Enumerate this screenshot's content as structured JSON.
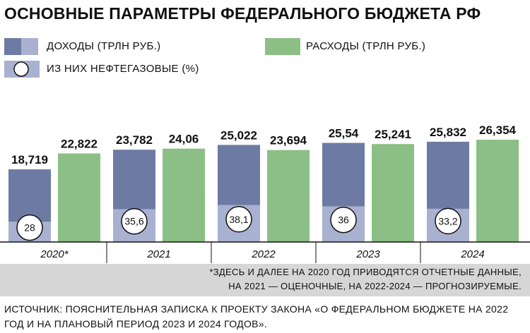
{
  "title": "ОСНОВНЫЕ ПАРАМЕТРЫ ФЕДЕРАЛЬНОГО БЮДЖЕТА РФ",
  "legend": {
    "income": "ДОХОДЫ (ТРЛН РУБ.)",
    "expenses": "РАСХОДЫ (ТРЛН РУБ.)",
    "oil_gas": "ИЗ НИХ НЕФТЕГАЗОВЫЕ (%)"
  },
  "colors": {
    "income": "#6d7ba4",
    "income_light": "#a9b1d0",
    "expenses": "#8cbf85",
    "note_bg": "#d6d6d6"
  },
  "chart_data": {
    "type": "bar",
    "categories": [
      "2020*",
      "2021",
      "2022",
      "2023",
      "2024"
    ],
    "series": [
      {
        "name": "ДОХОДЫ (ТРЛН РУБ.)",
        "values": [
          18.719,
          23.782,
          25.022,
          25.54,
          25.832
        ],
        "labels": [
          "18,719",
          "23,782",
          "25,022",
          "25,54",
          "25,832"
        ]
      },
      {
        "name": "РАСХОДЫ (ТРЛН РУБ.)",
        "values": [
          22.822,
          24.06,
          23.694,
          25.241,
          26.354
        ],
        "labels": [
          "22,822",
          "24,06",
          "23,694",
          "25,241",
          "26,354"
        ]
      }
    ],
    "oil_gas_share": {
      "name": "ИЗ НИХ НЕФТЕГАЗОВЫЕ (%)",
      "values": [
        28,
        35.6,
        38.1,
        36,
        33.2
      ],
      "labels": [
        "28",
        "35,6",
        "38,1",
        "36",
        "33,2"
      ]
    }
  },
  "note": {
    "line1": "*ЗДЕСЬ И ДАЛЕЕ НА 2020 ГОД ПРИВОДЯТСЯ ОТЧЕТНЫЕ ДАННЫЕ,",
    "line2": "НА 2021 — ОЦЕНОЧНЫЕ, НА 2022-2024 — ПРОГНОЗИРУЕМЫЕ."
  },
  "source": "ИСТОЧНИК: ПОЯСНИТЕЛЬНАЯ ЗАПИСКА К ПРОЕКТУ ЗАКОНА «О ФЕДЕРАЛЬНОМ БЮДЖЕТЕ НА 2022 ГОД И НА ПЛАНОВЫЙ ПЕРИОД 2023 И 2024 ГОДОВ»."
}
